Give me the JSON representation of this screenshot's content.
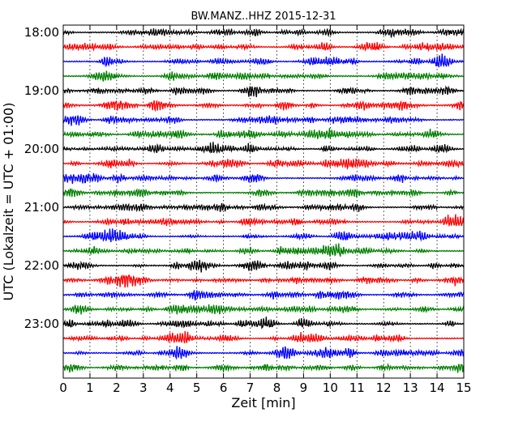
{
  "chart_data": {
    "type": "line",
    "title": "BW.MANZ..HHZ 2015-12-31",
    "xlabel": "Zeit  [min]",
    "ylabel": "UTC (Lokalzeit = UTC + 01:00)",
    "xlim": [
      0,
      15
    ],
    "x_ticks": [
      "0",
      "1",
      "2",
      "3",
      "4",
      "5",
      "6",
      "7",
      "8",
      "9",
      "10",
      "11",
      "12",
      "13",
      "14",
      "15"
    ],
    "y_ticks": [
      "18:00",
      "19:00",
      "20:00",
      "21:00",
      "22:00",
      "23:00"
    ],
    "y_tick_rows": [
      0,
      4,
      8,
      12,
      16,
      20
    ],
    "trace_count": 24,
    "trace_interval_minutes": 15,
    "trace_colors": [
      "#000000",
      "#ff0000",
      "#0000ff",
      "#008000"
    ],
    "grid": "vertical dotted at each minute",
    "traces": [
      {
        "start": "18:00"
      },
      {
        "start": "18:15"
      },
      {
        "start": "18:30"
      },
      {
        "start": "18:45"
      },
      {
        "start": "19:00"
      },
      {
        "start": "19:15"
      },
      {
        "start": "19:30"
      },
      {
        "start": "19:45"
      },
      {
        "start": "20:00"
      },
      {
        "start": "20:15"
      },
      {
        "start": "20:30"
      },
      {
        "start": "20:45"
      },
      {
        "start": "21:00"
      },
      {
        "start": "21:15"
      },
      {
        "start": "21:30"
      },
      {
        "start": "21:45"
      },
      {
        "start": "22:00"
      },
      {
        "start": "22:15"
      },
      {
        "start": "22:30"
      },
      {
        "start": "22:45"
      },
      {
        "start": "23:00"
      },
      {
        "start": "23:15"
      },
      {
        "start": "23:30"
      },
      {
        "start": "23:45"
      }
    ]
  }
}
